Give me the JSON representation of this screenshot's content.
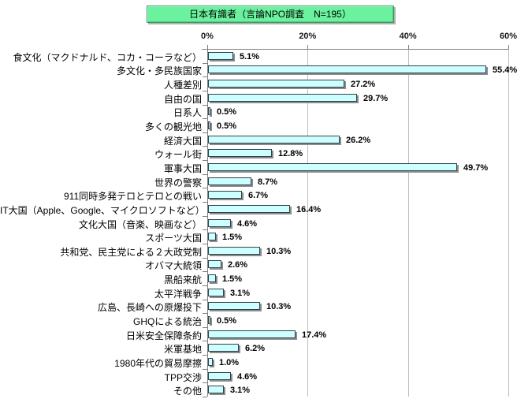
{
  "title": "日本有識者（言論NPO調査　N=195）",
  "chart_data": {
    "type": "bar",
    "orientation": "horizontal",
    "title": "日本有識者（言論NPO調査　N=195）",
    "categories": [
      "食文化（マクドナルド、コカ・コーラなど）",
      "多文化・多民族国家",
      "人種差別",
      "自由の国",
      "日系人",
      "多くの観光地",
      "経済大国",
      "ウォール街",
      "軍事大国",
      "世界の警察",
      "911同時多発テロとテロとの戦い",
      "IT大国（Apple、Google、マイクロソフトなど）",
      "文化大国（音楽、映画など）",
      "スポーツ大国",
      "共和党、民主党による２大政党制",
      "オバマ大統領",
      "黒船来航",
      "太平洋戦争",
      "広島、長崎への原爆投下",
      "GHQによる統治",
      "日米安全保障条約",
      "米軍基地",
      "1980年代の貿易摩擦",
      "TPP交渉",
      "その他"
    ],
    "values": [
      5.1,
      55.4,
      27.2,
      29.7,
      0.5,
      0.5,
      26.2,
      12.8,
      49.7,
      8.7,
      6.7,
      16.4,
      4.6,
      1.5,
      10.3,
      2.6,
      1.5,
      3.1,
      10.3,
      0.5,
      17.4,
      6.2,
      1.0,
      4.6,
      3.1
    ],
    "value_labels": [
      "5.1%",
      "55.4%",
      "27.2%",
      "29.7%",
      "0.5%",
      "0.5%",
      "26.2%",
      "12.8%",
      "49.7%",
      "8.7%",
      "6.7%",
      "16.4%",
      "4.6%",
      "1.5%",
      "10.3%",
      "2.6%",
      "1.5%",
      "3.1%",
      "10.3%",
      "0.5%",
      "17.4%",
      "6.2%",
      "1.0%",
      "4.6%",
      "3.1%"
    ],
    "xlim": [
      0,
      60
    ],
    "x_ticks": [
      "0%",
      "20%",
      "40%",
      "60%"
    ],
    "x_tick_values": [
      0,
      20,
      40,
      60
    ],
    "legend": "none",
    "grid": "vertical-major",
    "colors": {
      "bar_fill": "#CCFFFF",
      "bar_border": "#33414D",
      "bar_shadow": "#8C8C8C",
      "title_fill": "#6BF29E",
      "axis_line": "#808080",
      "gridline": "#BDBDBD"
    }
  }
}
